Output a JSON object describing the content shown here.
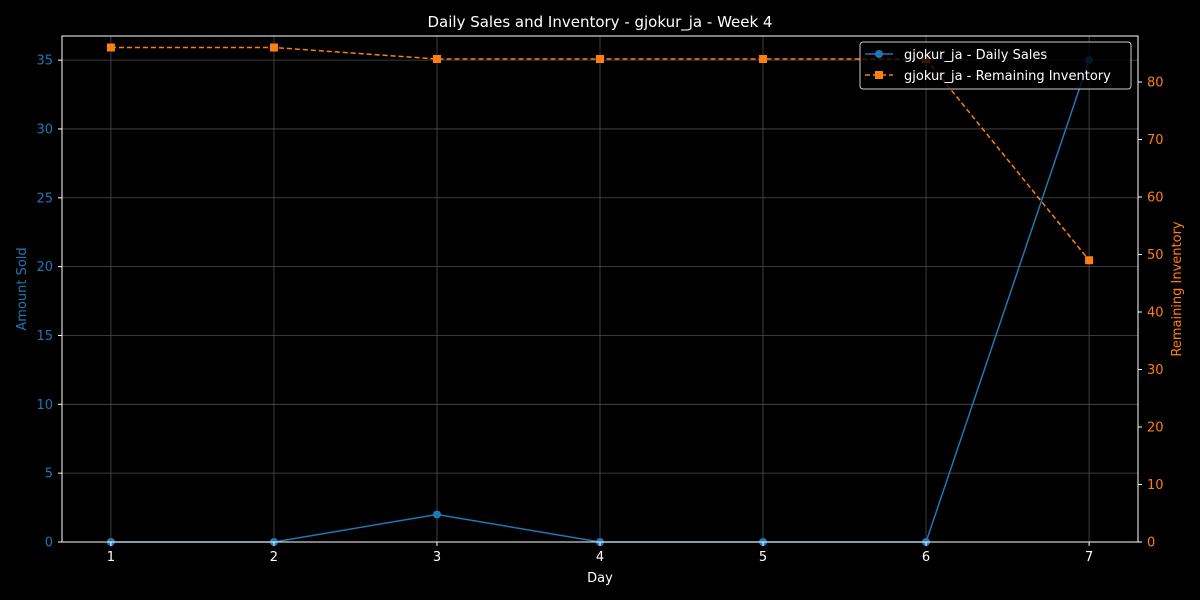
{
  "chart_data": {
    "type": "line",
    "title": "Daily Sales and Inventory - gjokur_ja - Week 4",
    "xlabel": "Day",
    "y_left_label": "Amount Sold",
    "y_right_label": "Remaining Inventory",
    "x": [
      1,
      2,
      3,
      4,
      5,
      6,
      7
    ],
    "x_ticks": [
      "1",
      "2",
      "3",
      "4",
      "5",
      "6",
      "7"
    ],
    "y_left_ticks": [
      "0",
      "5",
      "10",
      "15",
      "20",
      "25",
      "30",
      "35"
    ],
    "y_right_ticks": [
      "0",
      "10",
      "20",
      "30",
      "40",
      "50",
      "60",
      "70",
      "80"
    ],
    "y_left_range": [
      0,
      36.75
    ],
    "y_right_range": [
      0,
      88
    ],
    "grid": true,
    "legend_position": "top-right",
    "series": [
      {
        "name": "gjokur_ja - Daily Sales",
        "axis": "left",
        "color": "#1f77b4",
        "line_style": "solid",
        "marker": "circle",
        "values": [
          0,
          0,
          2,
          0,
          0,
          0,
          35
        ]
      },
      {
        "name": "gjokur_ja - Remaining Inventory",
        "axis": "right",
        "color": "#ff7f0e",
        "line_style": "dashed",
        "marker": "square",
        "values": [
          86,
          86,
          84,
          84,
          84,
          84,
          49
        ]
      }
    ],
    "colors": {
      "background": "#000000",
      "axes": "#ffffff",
      "grid": "#555555",
      "left_axis": "#1f77b4",
      "right_axis": "#ff7f0e",
      "text": "#ffffff"
    }
  }
}
